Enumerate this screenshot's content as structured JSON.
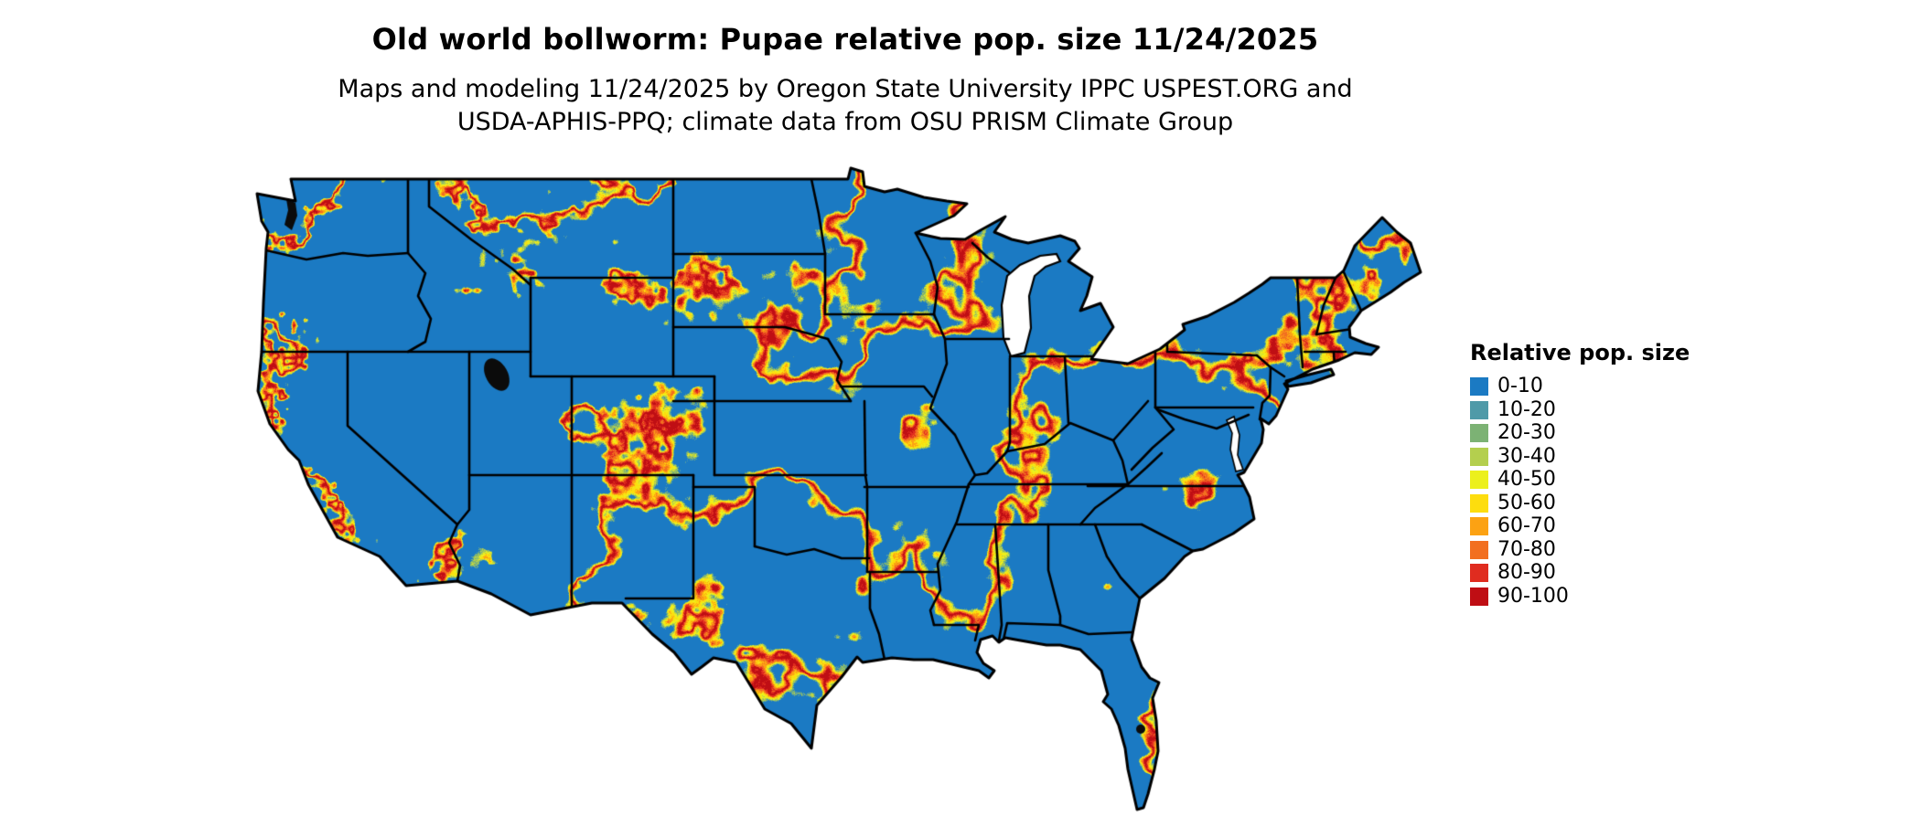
{
  "header": {
    "title": "Old world bollworm: Pupae relative pop. size 11/24/2025",
    "credit_line1": "Maps and modeling 11/24/2025 by Oregon State University IPPC USPEST.ORG and",
    "credit_line2": "USDA-APHIS-PPQ; climate data from OSU PRISM Climate Group"
  },
  "legend": {
    "title": "Relative pop. size",
    "items": [
      {
        "label": "0-10",
        "color": "#1b7ac3"
      },
      {
        "label": "10-20",
        "color": "#4f9aa8"
      },
      {
        "label": "20-30",
        "color": "#7cb274"
      },
      {
        "label": "30-40",
        "color": "#b4cf4e"
      },
      {
        "label": "40-50",
        "color": "#ecf01c"
      },
      {
        "label": "50-60",
        "color": "#fddd0e"
      },
      {
        "label": "60-70",
        "color": "#fca213"
      },
      {
        "label": "70-80",
        "color": "#f26f20"
      },
      {
        "label": "80-90",
        "color": "#e02c1f"
      },
      {
        "label": "90-100",
        "color": "#bf0e14"
      }
    ]
  },
  "chart_data": {
    "type": "heatmap",
    "title": "Old world bollworm: Pupae relative pop. size 11/24/2025",
    "region": "Continental United States with state boundaries",
    "legend_title": "Relative pop. size",
    "value_range": [
      0,
      100
    ],
    "classes": [
      "0-10",
      "10-20",
      "20-30",
      "30-40",
      "40-50",
      "50-60",
      "60-70",
      "70-80",
      "80-90",
      "90-100"
    ],
    "palette": [
      "#1b7ac3",
      "#4f9aa8",
      "#7cb274",
      "#b4cf4e",
      "#ecf01c",
      "#fddd0e",
      "#fca213",
      "#f26f20",
      "#e02c1f",
      "#bf0e14"
    ]
  }
}
